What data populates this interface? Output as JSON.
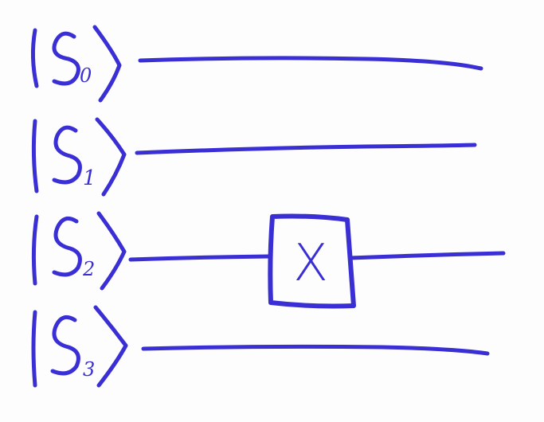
{
  "diagram": {
    "ink_color": "#3a2fd4",
    "paper_color": "#fdfdfd",
    "qubits": [
      {
        "label": "S",
        "subscript": "0"
      },
      {
        "label": "S",
        "subscript": "1"
      },
      {
        "label": "S",
        "subscript": "2"
      },
      {
        "label": "S",
        "subscript": "3"
      }
    ],
    "gate": {
      "symbol": "X",
      "on_qubit": 2
    }
  }
}
